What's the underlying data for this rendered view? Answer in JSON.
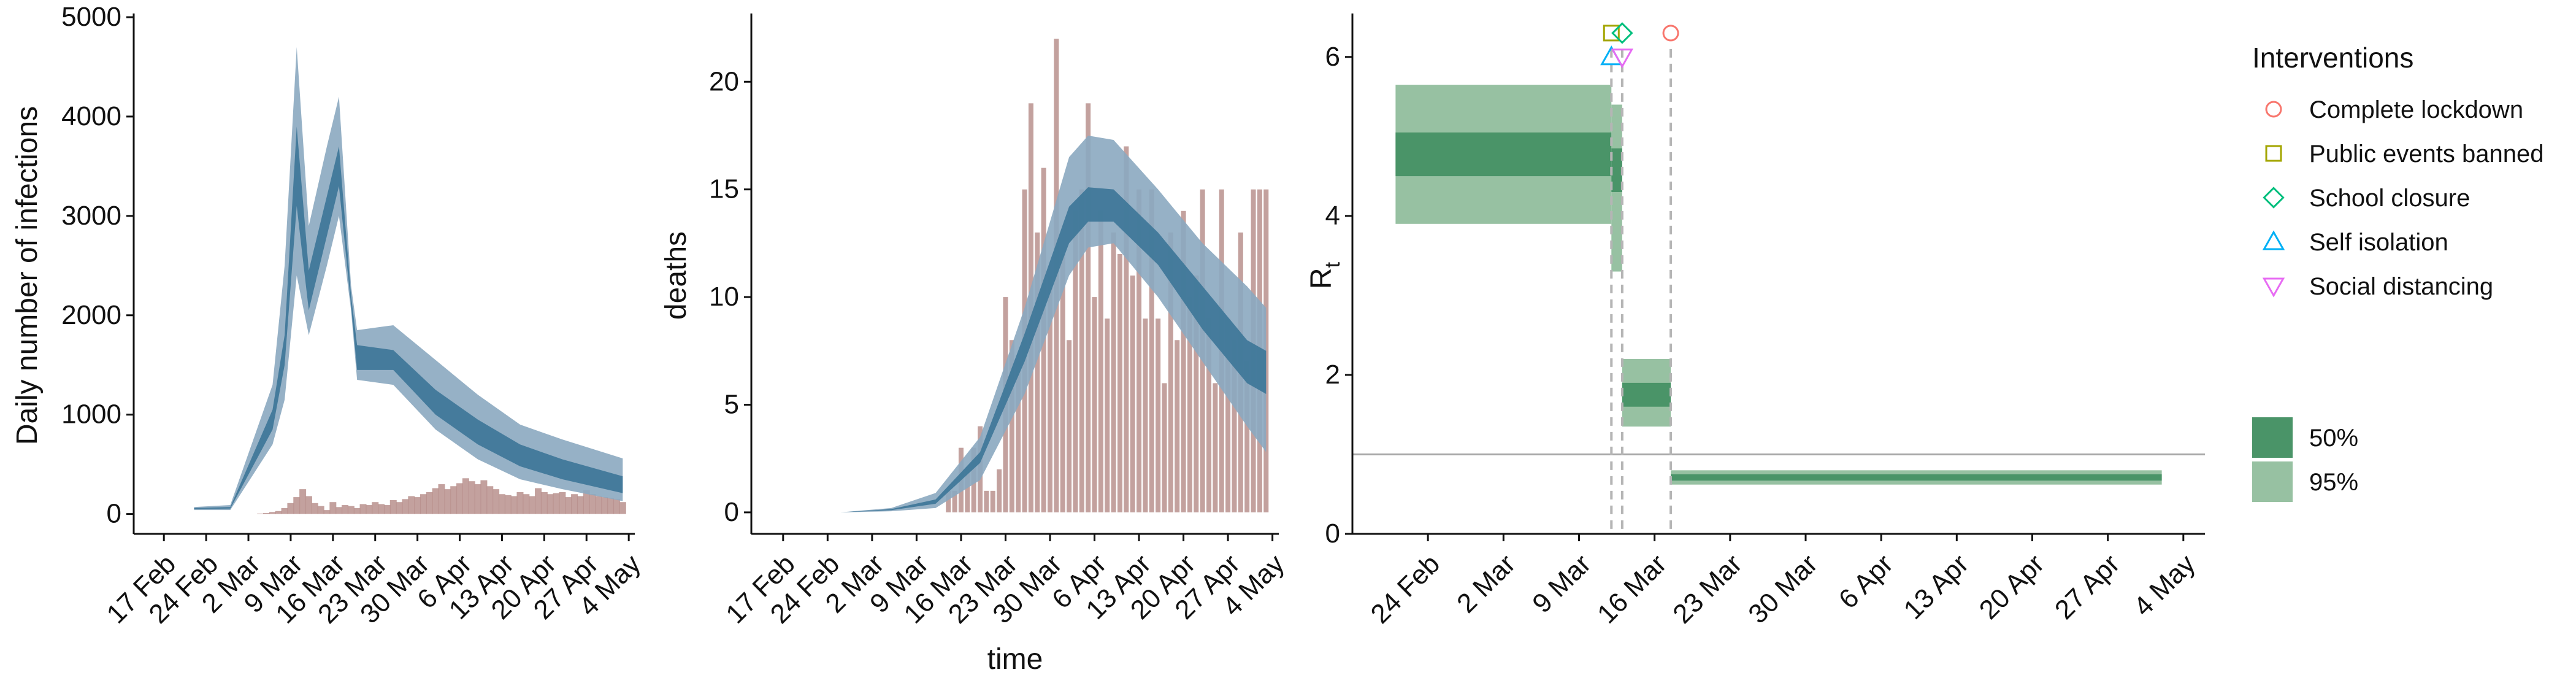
{
  "chart_data": [
    {
      "type": "area",
      "ylabel": "Daily number of infections",
      "xlabel": "",
      "ylim": [
        -200,
        5000
      ],
      "y_ticks": [
        0,
        1000,
        2000,
        3000,
        4000,
        5000
      ],
      "x_ticks": [
        "17 Feb",
        "24 Feb",
        "2 Mar",
        "9 Mar",
        "16 Mar",
        "23 Mar",
        "30 Mar",
        "6 Apr",
        "13 Apr",
        "20 Apr",
        "27 Apr",
        "4 May"
      ],
      "series": [
        {
          "role": "band_95",
          "x": [
            "2020-02-22",
            "2020-02-28",
            "2020-03-06",
            "2020-03-08",
            "2020-03-10",
            "2020-03-12",
            "2020-03-15",
            "2020-03-17",
            "2020-03-19",
            "2020-03-20",
            "2020-03-26",
            "2020-04-02",
            "2020-04-09",
            "2020-04-16",
            "2020-04-23",
            "2020-05-03"
          ],
          "lower": [
            40,
            40,
            700,
            1150,
            2400,
            1800,
            2500,
            3000,
            2050,
            1350,
            1300,
            850,
            550,
            350,
            250,
            130
          ],
          "upper": [
            70,
            90,
            1300,
            2500,
            4700,
            2900,
            3700,
            4200,
            2300,
            1850,
            1900,
            1550,
            1200,
            900,
            750,
            560
          ]
        },
        {
          "role": "band_50",
          "x": [
            "2020-02-22",
            "2020-02-28",
            "2020-03-06",
            "2020-03-08",
            "2020-03-10",
            "2020-03-12",
            "2020-03-15",
            "2020-03-17",
            "2020-03-19",
            "2020-03-20",
            "2020-03-26",
            "2020-04-02",
            "2020-04-09",
            "2020-04-16",
            "2020-04-23",
            "2020-05-03"
          ],
          "lower": [
            50,
            55,
            850,
            1500,
            3100,
            2050,
            2800,
            3300,
            2100,
            1450,
            1450,
            1000,
            700,
            480,
            350,
            210
          ],
          "upper": [
            60,
            70,
            1050,
            1800,
            3900,
            2450,
            3200,
            3700,
            2200,
            1700,
            1650,
            1250,
            950,
            700,
            550,
            380
          ]
        }
      ],
      "bars": {
        "x": [
          "2020-03-04",
          "2020-03-05",
          "2020-03-06",
          "2020-03-07",
          "2020-03-08",
          "2020-03-09",
          "2020-03-10",
          "2020-03-11",
          "2020-03-12",
          "2020-03-13",
          "2020-03-14",
          "2020-03-15",
          "2020-03-16",
          "2020-03-17",
          "2020-03-18",
          "2020-03-19",
          "2020-03-20",
          "2020-03-21",
          "2020-03-22",
          "2020-03-23",
          "2020-03-24",
          "2020-03-25",
          "2020-03-26",
          "2020-03-27",
          "2020-03-28",
          "2020-03-29",
          "2020-03-30",
          "2020-03-31",
          "2020-04-01",
          "2020-04-02",
          "2020-04-03",
          "2020-04-04",
          "2020-04-05",
          "2020-04-06",
          "2020-04-07",
          "2020-04-08",
          "2020-04-09",
          "2020-04-10",
          "2020-04-11",
          "2020-04-12",
          "2020-04-13",
          "2020-04-14",
          "2020-04-15",
          "2020-04-16",
          "2020-04-17",
          "2020-04-18",
          "2020-04-19",
          "2020-04-20",
          "2020-04-21",
          "2020-04-22",
          "2020-04-23",
          "2020-04-24",
          "2020-04-25",
          "2020-04-26",
          "2020-04-27",
          "2020-04-28",
          "2020-04-29",
          "2020-04-30",
          "2020-05-01",
          "2020-05-02",
          "2020-05-03"
        ],
        "values": [
          5,
          10,
          20,
          30,
          60,
          110,
          170,
          250,
          180,
          110,
          80,
          40,
          120,
          70,
          90,
          80,
          60,
          100,
          90,
          120,
          100,
          90,
          140,
          120,
          150,
          180,
          170,
          200,
          220,
          260,
          300,
          250,
          280,
          310,
          360,
          330,
          300,
          340,
          280,
          250,
          200,
          190,
          180,
          220,
          200,
          180,
          260,
          220,
          200,
          210,
          220,
          170,
          200,
          180,
          240,
          200,
          180,
          170,
          160,
          150,
          120
        ]
      }
    },
    {
      "type": "area",
      "ylabel": "deaths",
      "xlabel": "time",
      "ylim": [
        -1,
        23
      ],
      "y_ticks": [
        0,
        5,
        10,
        15,
        20
      ],
      "x_ticks": [
        "17 Feb",
        "24 Feb",
        "2 Mar",
        "9 Mar",
        "16 Mar",
        "23 Mar",
        "30 Mar",
        "6 Apr",
        "13 Apr",
        "20 Apr",
        "27 Apr",
        "4 May"
      ],
      "series": [
        {
          "role": "band_95",
          "x": [
            "2020-02-26",
            "2020-03-05",
            "2020-03-12",
            "2020-03-19",
            "2020-03-26",
            "2020-04-02",
            "2020-04-05",
            "2020-04-09",
            "2020-04-16",
            "2020-04-23",
            "2020-04-30",
            "2020-05-03"
          ],
          "lower": [
            0,
            0.05,
            0.2,
            1.5,
            5.5,
            11,
            12.3,
            12.5,
            10,
            7,
            4,
            2.8
          ],
          "upper": [
            0,
            0.2,
            0.9,
            3.5,
            9.5,
            16.5,
            17.5,
            17.3,
            15,
            12.5,
            10.5,
            9.5
          ]
        },
        {
          "role": "band_50",
          "x": [
            "2020-02-26",
            "2020-03-05",
            "2020-03-12",
            "2020-03-19",
            "2020-03-26",
            "2020-04-02",
            "2020-04-05",
            "2020-04-09",
            "2020-04-16",
            "2020-04-23",
            "2020-04-30",
            "2020-05-03"
          ],
          "lower": [
            0,
            0.1,
            0.4,
            2.3,
            7,
            12.5,
            13.5,
            13.5,
            11.5,
            8.5,
            6,
            5.5
          ],
          "upper": [
            0,
            0.15,
            0.6,
            2.8,
            8.3,
            14.2,
            15.1,
            15,
            13,
            10.5,
            8,
            7.5
          ]
        }
      ],
      "bars": {
        "x": [
          "2020-03-14",
          "2020-03-15",
          "2020-03-16",
          "2020-03-17",
          "2020-03-18",
          "2020-03-19",
          "2020-03-20",
          "2020-03-21",
          "2020-03-22",
          "2020-03-23",
          "2020-03-24",
          "2020-03-25",
          "2020-03-26",
          "2020-03-27",
          "2020-03-28",
          "2020-03-29",
          "2020-03-30",
          "2020-03-31",
          "2020-04-01",
          "2020-04-02",
          "2020-04-03",
          "2020-04-04",
          "2020-04-05",
          "2020-04-06",
          "2020-04-07",
          "2020-04-08",
          "2020-04-09",
          "2020-04-10",
          "2020-04-11",
          "2020-04-12",
          "2020-04-13",
          "2020-04-14",
          "2020-04-15",
          "2020-04-16",
          "2020-04-17",
          "2020-04-18",
          "2020-04-19",
          "2020-04-20",
          "2020-04-21",
          "2020-04-22",
          "2020-04-23",
          "2020-04-24",
          "2020-04-25",
          "2020-04-26",
          "2020-04-27",
          "2020-04-28",
          "2020-04-29",
          "2020-04-30",
          "2020-05-01",
          "2020-05-02",
          "2020-05-03"
        ],
        "values": [
          1,
          1,
          3,
          2,
          3,
          4,
          1,
          1,
          2,
          10,
          8,
          7,
          15,
          19,
          13,
          16,
          11,
          22,
          12,
          8,
          14,
          15,
          19,
          10,
          14,
          9,
          13,
          12,
          17,
          11,
          15,
          9,
          15,
          9,
          6,
          13,
          8,
          14,
          10,
          11,
          15,
          9,
          6,
          15,
          9,
          8,
          13,
          7,
          15,
          15,
          15
        ]
      }
    },
    {
      "type": "bar",
      "ylabel": "R",
      "ylabel_sub": "t",
      "ylim": [
        0,
        6.5
      ],
      "y_ticks": [
        0,
        2,
        4,
        6
      ],
      "x_ticks": [
        "24 Feb",
        "2 Mar",
        "9 Mar",
        "16 Mar",
        "23 Mar",
        "30 Mar",
        "6 Apr",
        "13 Apr",
        "20 Apr",
        "27 Apr",
        "4 May"
      ],
      "reference_line": 1,
      "segments": [
        {
          "start": "2020-02-21",
          "end": "2020-03-12",
          "lo95": 3.9,
          "hi95": 5.65,
          "lo50": 4.5,
          "hi50": 5.05
        },
        {
          "start": "2020-03-12",
          "end": "2020-03-13",
          "lo95": 3.3,
          "hi95": 5.4,
          "lo50": 4.3,
          "hi50": 4.85
        },
        {
          "start": "2020-03-13",
          "end": "2020-03-17.5",
          "lo95": 1.35,
          "hi95": 2.2,
          "lo50": 1.6,
          "hi50": 1.9
        },
        {
          "start": "2020-03-17.5",
          "end": "2020-05-02",
          "lo95": 0.62,
          "hi95": 0.8,
          "lo50": 0.67,
          "hi50": 0.75
        }
      ],
      "intervention_dates": [
        "2020-03-12",
        "2020-03-13",
        "2020-03-17.5"
      ],
      "interventions": [
        {
          "name": "Complete lockdown",
          "date": "2020-03-17.5",
          "y": 6.3,
          "shape": "circle",
          "color": "#F8766D"
        },
        {
          "name": "Public events banned",
          "date": "2020-03-12",
          "y": 6.3,
          "shape": "square",
          "color": "#A3A500"
        },
        {
          "name": "School closure",
          "date": "2020-03-13",
          "y": 6.3,
          "shape": "diamond",
          "color": "#00BF7D"
        },
        {
          "name": "Self isolation",
          "date": "2020-03-12",
          "y": 6.0,
          "shape": "triangle-up",
          "color": "#00B0F6"
        },
        {
          "name": "Social distancing",
          "date": "2020-03-13",
          "y": 6.0,
          "shape": "triangle-down",
          "color": "#E76BF3"
        }
      ],
      "legend_title": "Interventions",
      "band_legend": [
        {
          "label": "50%",
          "color": "#4A9468"
        },
        {
          "label": "95%",
          "color": "#97C1A2"
        }
      ]
    }
  ],
  "colors": {
    "blue_band_95": "#8BA9C0",
    "blue_band_50": "#3C7597",
    "bars": "#B9918D",
    "green_band_95": "#97C1A2",
    "green_band_50": "#4A9468"
  }
}
